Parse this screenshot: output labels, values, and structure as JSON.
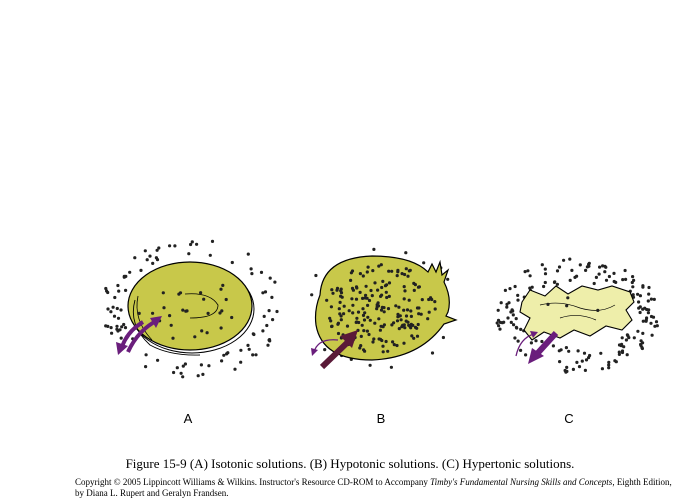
{
  "figure": {
    "panels": [
      {
        "label": "A"
      },
      {
        "label": "B"
      },
      {
        "label": "C"
      }
    ],
    "caption": "Figure 15-9 (A) Isotonic solutions. (B) Hypotonic solutions. (C) Hypertonic solutions.",
    "copyright": {
      "line1_prefix": "Copyright © 2005 Lippincott Williams & Wilkins.  Instructor's Resource CD-ROM to Accompany ",
      "book_title": "Timby's Fundamental Nursing Skills and Concepts",
      "line1_suffix": ", Eighth Edition,",
      "line2": "by Diana L. Rupert and Geralyn Frandsen."
    }
  },
  "colors": {
    "cell_fill": "#c8c84a",
    "shrunken_cell_fill": "#eeeeaa",
    "arrow": "#6a1e7c",
    "arrow_dark": "#5a1a38",
    "particle": "#222222"
  }
}
